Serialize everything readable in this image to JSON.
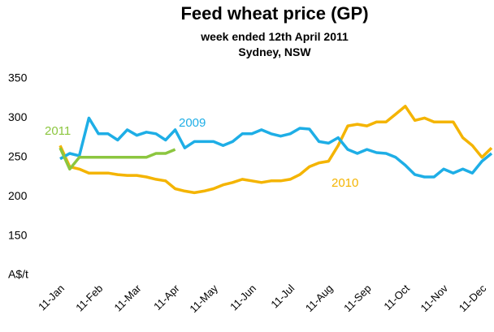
{
  "chart_data": {
    "type": "line",
    "title": "Feed wheat price (GP)",
    "subtitle": "week ended 12th April 2011",
    "location": "Sydney, NSW",
    "categories": [
      "11-Jan",
      null,
      null,
      null,
      "11-Feb",
      null,
      null,
      null,
      "11-Mar",
      null,
      null,
      null,
      "11-Apr",
      null,
      null,
      null,
      "11-May",
      null,
      null,
      null,
      "11-Jun",
      null,
      null,
      null,
      "11-Jul",
      null,
      null,
      null,
      "11-Aug",
      null,
      null,
      null,
      "11-Sep",
      null,
      null,
      null,
      "11-Oct",
      null,
      null,
      null,
      "11-Nov",
      null,
      null,
      null,
      "11-Dec",
      null
    ],
    "ylim": [
      100,
      350
    ],
    "yticks": [
      {
        "value": 100,
        "label": "A$/t"
      },
      150,
      200,
      250,
      300,
      350
    ],
    "grid": false,
    "series": [
      {
        "name": "2009",
        "color": "#1eaee6",
        "values": [
          248,
          255,
          252,
          300,
          280,
          280,
          272,
          285,
          278,
          282,
          280,
          272,
          285,
          262,
          270,
          270,
          270,
          265,
          270,
          280,
          280,
          285,
          280,
          277,
          280,
          287,
          286,
          270,
          268,
          275,
          260,
          255,
          260,
          256,
          255,
          250,
          240,
          228,
          225,
          225,
          235,
          230,
          235,
          230,
          245,
          255
        ]
      },
      {
        "name": "2010",
        "color": "#f4b400",
        "values": [
          265,
          238,
          235,
          230,
          230,
          230,
          228,
          227,
          227,
          225,
          222,
          220,
          210,
          207,
          205,
          207,
          210,
          215,
          218,
          222,
          220,
          218,
          220,
          220,
          222,
          228,
          238,
          243,
          245,
          265,
          290,
          292,
          290,
          295,
          295,
          305,
          315,
          297,
          300,
          295,
          295,
          295,
          275,
          265,
          250,
          262
        ]
      },
      {
        "name": "2011",
        "color": "#8cc63f",
        "values": [
          262,
          235,
          250,
          250,
          250,
          250,
          250,
          250,
          250,
          250,
          255,
          255,
          260,
          null,
          null,
          null,
          null,
          null,
          null,
          null,
          null,
          null,
          null,
          null,
          null,
          null,
          null,
          null,
          null,
          null,
          null,
          null,
          null,
          null,
          null,
          null,
          null,
          null,
          null,
          null,
          null,
          null,
          null,
          null,
          null,
          null
        ]
      }
    ]
  }
}
